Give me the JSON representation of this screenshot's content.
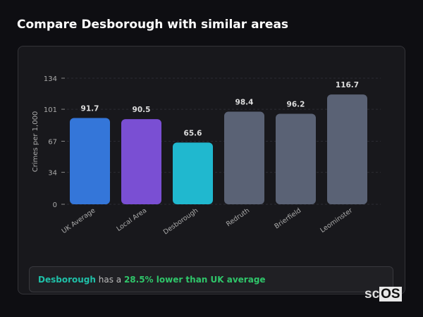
{
  "title": "Compare Desborough with similar areas",
  "chart_data": {
    "type": "bar",
    "ylabel": "Crimes per 1,000",
    "xlabel": "",
    "ylim": [
      0,
      134
    ],
    "yticks": [
      0,
      34,
      67,
      101,
      134
    ],
    "grid": true,
    "categories": [
      "UK Average",
      "Local Area",
      "Desborough",
      "Redruth",
      "Brierfield",
      "Leominster"
    ],
    "values": [
      91.7,
      90.5,
      65.6,
      98.4,
      96.2,
      116.7
    ],
    "value_labels": [
      "91.7",
      "90.5",
      "65.6",
      "98.4",
      "96.2",
      "116.7"
    ],
    "colors": [
      "#3476d9",
      "#7a4fd3",
      "#20b8cf",
      "#5a6275",
      "#5a6275",
      "#5a6275"
    ]
  },
  "summary": {
    "area": "Desborough",
    "middle": " has a ",
    "comparison": "28.5% lower than UK average"
  },
  "logo": {
    "prefix": "sc",
    "boxed": "OS"
  }
}
